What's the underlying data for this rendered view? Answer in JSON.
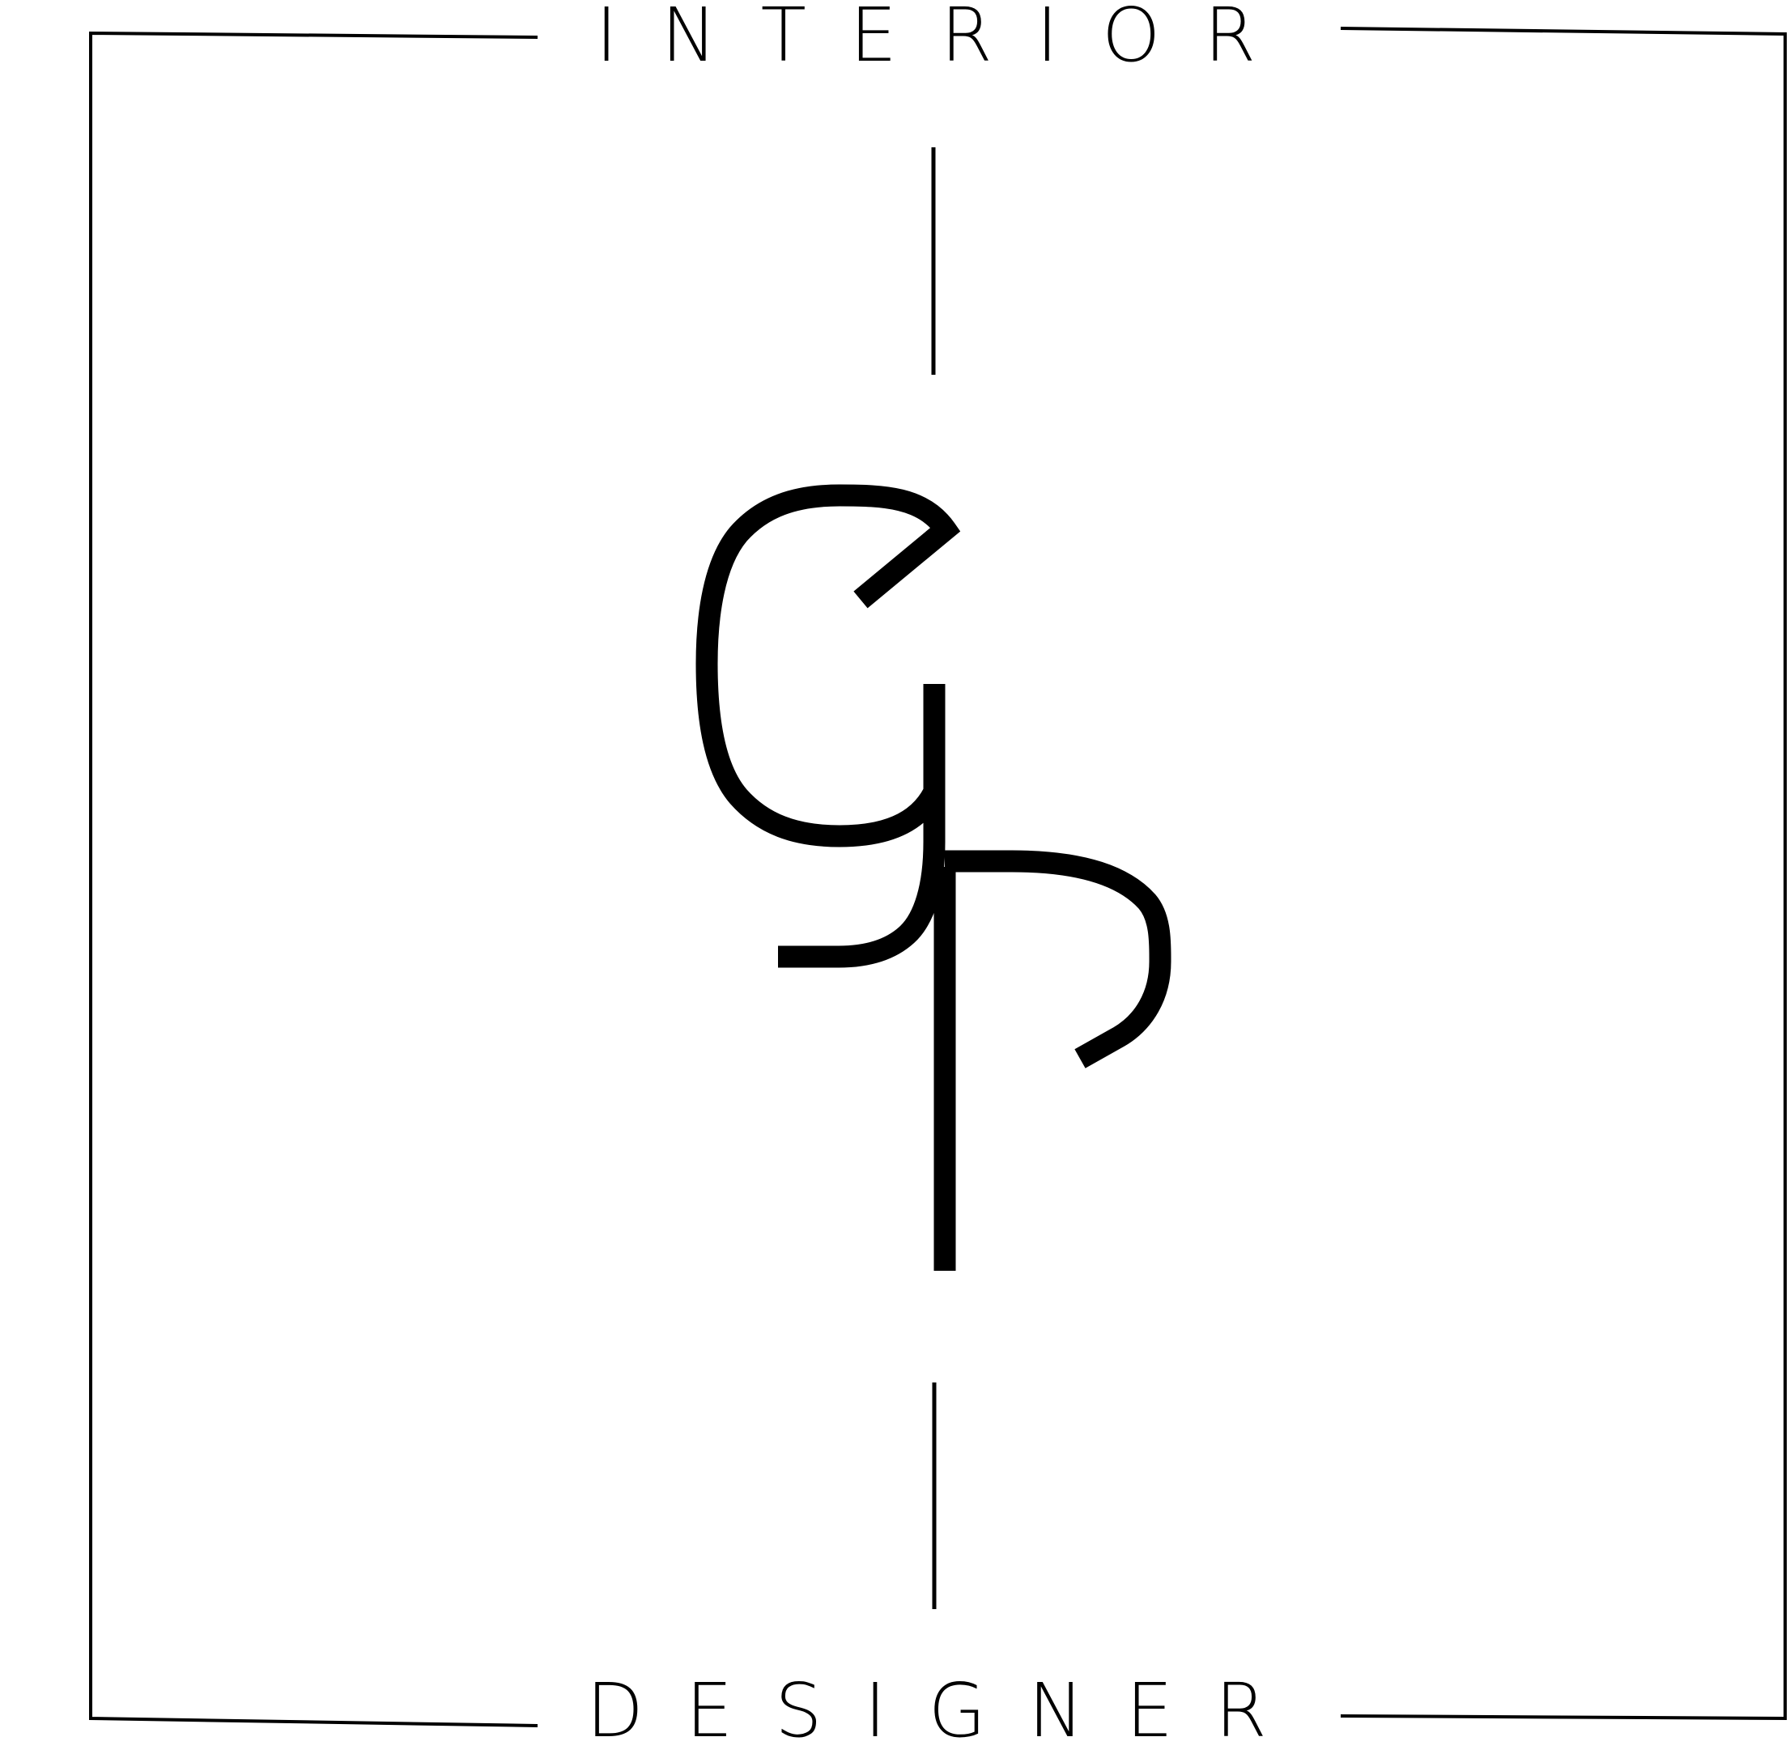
{
  "logo": {
    "top_word": "INTERIOR",
    "bottom_word": "DESIGNER",
    "monogram": "GR",
    "ink_color": "#000000",
    "background_color": "#ffffff"
  }
}
